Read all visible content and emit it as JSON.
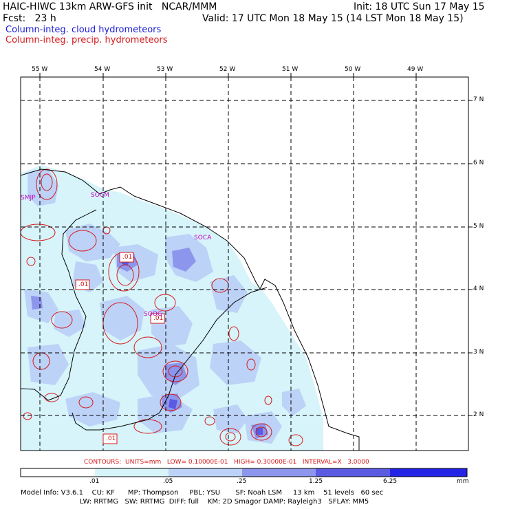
{
  "header": {
    "title": "HAIC-HIWC 13km ARW-GFS init   NCAR/MMM",
    "init": "Init: 18 UTC Sun 17 May 15",
    "fcst": "Fcst:   23 h",
    "valid": "Valid: 17 UTC Mon 18 May 15 (14 LST Mon 18 May 15)",
    "field1": "Column-integ. cloud hydrometeors",
    "field2": "Column-integ. precip. hydrometeors"
  },
  "map": {
    "lon_labels": [
      "55 W",
      "54 W",
      "53 W",
      "52 W",
      "51 W",
      "50 W",
      "49 W"
    ],
    "lat_labels": [
      "7 N",
      "6 N",
      "5 N",
      "4 N",
      "3 N",
      "2 N"
    ],
    "stations": [
      "SMJP",
      "SOCM",
      "SOCA",
      "SOOG"
    ],
    "contour_labels": [
      ".01",
      ".01",
      ".01",
      ".01"
    ]
  },
  "contour_info": "CONTOURS:  UNITS=mm   LOW= 0.10000E-01   HIGH= 0.30000E-01   INTERVAL=X   3.0000",
  "colorbar": {
    "ticks": [
      ".01",
      ".05",
      ".25",
      "1.25",
      "6.25"
    ],
    "units": "mm",
    "colors": [
      "#ffffff",
      "#d6f4fa",
      "#bdd2f7",
      "#8c96ec",
      "#5a5ae2",
      "#2424e6"
    ]
  },
  "footer": {
    "line1": "Model Info: V3.6.1    CU: KF      MP: Thompson     PBL: YSU       SF: Noah LSM     13 km    51 levels   60 sec",
    "line2": "                           LW: RRTMG   SW: RRTMG  DIFF: full    KM: 2D Smagor DAMP: Rayleigh3   SFLAY: MM5"
  }
}
